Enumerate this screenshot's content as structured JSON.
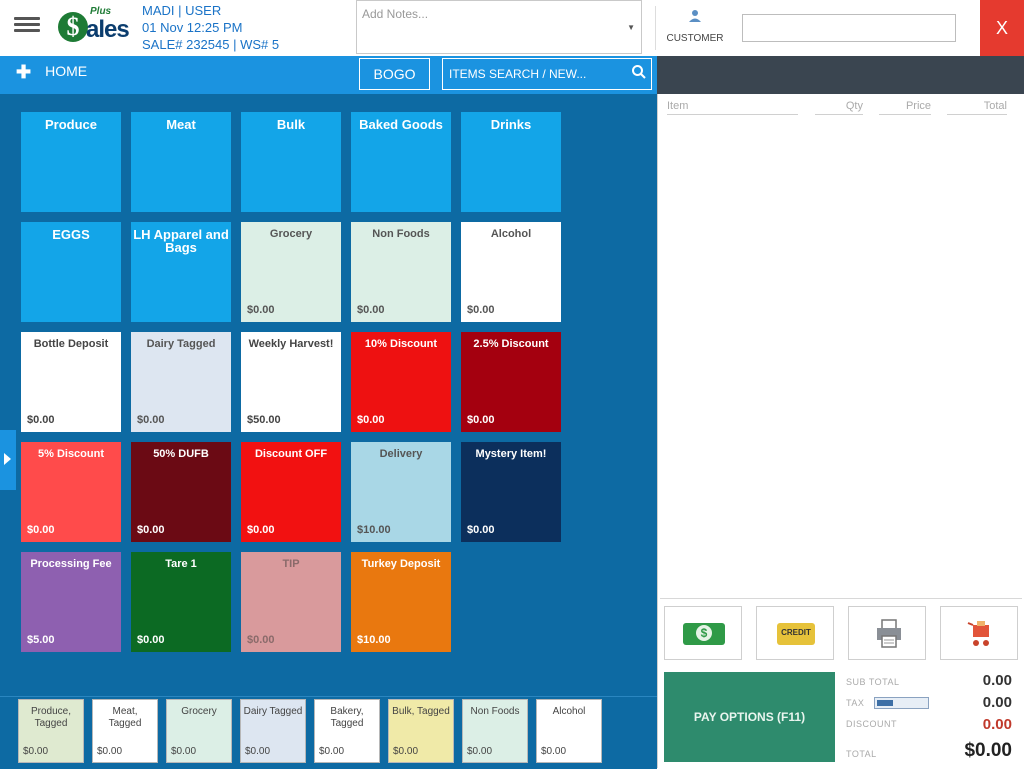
{
  "header": {
    "logo_top": "Plus",
    "logo_coin": "$",
    "logo_word": "ales",
    "user_line": "MADI  |  USER",
    "date_line": "01 Nov 12:25 PM",
    "sale_line": "SALE# 232545  |  WS# 5",
    "notes_placeholder": "Add Notes...",
    "customer_label": "CUSTOMER",
    "close_label": "X"
  },
  "nav": {
    "home_label": "HOME",
    "bogo_label": "BOGO",
    "search_label": "ITEMS SEARCH / NEW..."
  },
  "tiles": [
    {
      "name": "Produce",
      "price": "",
      "bg": "#13a5e8",
      "fg": "#ffffff"
    },
    {
      "name": "Meat",
      "price": "",
      "bg": "#13a5e8",
      "fg": "#ffffff"
    },
    {
      "name": "Bulk",
      "price": "",
      "bg": "#13a5e8",
      "fg": "#ffffff"
    },
    {
      "name": "Baked Goods",
      "price": "",
      "bg": "#13a5e8",
      "fg": "#ffffff"
    },
    {
      "name": "Drinks",
      "price": "",
      "bg": "#13a5e8",
      "fg": "#ffffff"
    },
    {
      "name": "EGGS",
      "price": "",
      "bg": "#13a5e8",
      "fg": "#ffffff"
    },
    {
      "name": "LH Apparel and Bags",
      "price": "",
      "bg": "#13a5e8",
      "fg": "#ffffff"
    },
    {
      "name": "Grocery",
      "price": "$0.00",
      "bg": "#dcefe6",
      "fg": "#555555"
    },
    {
      "name": "Non Foods",
      "price": "$0.00",
      "bg": "#dcefe6",
      "fg": "#555555"
    },
    {
      "name": "Alcohol",
      "price": "$0.00",
      "bg": "#ffffff",
      "fg": "#555555"
    },
    {
      "name": "Bottle Deposit",
      "price": "$0.00",
      "bg": "#ffffff",
      "fg": "#444444"
    },
    {
      "name": "Dairy Tagged",
      "price": "$0.00",
      "bg": "#dde6f1",
      "fg": "#555555"
    },
    {
      "name": "Weekly Harvest!",
      "price": "$50.00",
      "bg": "#ffffff",
      "fg": "#444444"
    },
    {
      "name": "10% Discount",
      "price": "$0.00",
      "bg": "#ee1111",
      "fg": "#ffffff"
    },
    {
      "name": "2.5% Discount",
      "price": "$0.00",
      "bg": "#a4000f",
      "fg": "#ffffff"
    },
    {
      "name": "5% Discount",
      "price": "$0.00",
      "bg": "#ff4b4b",
      "fg": "#ffffff"
    },
    {
      "name": "50% DUFB",
      "price": "$0.00",
      "bg": "#6b0a14",
      "fg": "#ffffff"
    },
    {
      "name": "Discount OFF",
      "price": "$0.00",
      "bg": "#f21111",
      "fg": "#ffffff"
    },
    {
      "name": "Delivery",
      "price": "$10.00",
      "bg": "#a9d7e6",
      "fg": "#555555"
    },
    {
      "name": "Mystery Item!",
      "price": "$0.00",
      "bg": "#0c2f5c",
      "fg": "#ffffff"
    },
    {
      "name": "Processing Fee",
      "price": "$5.00",
      "bg": "#8e60b0",
      "fg": "#ffffff"
    },
    {
      "name": "Tare 1",
      "price": "$0.00",
      "bg": "#0c6a23",
      "fg": "#ffffff"
    },
    {
      "name": "TIP",
      "price": "$0.00",
      "bg": "#d99a9c",
      "fg": "#8a6a6a"
    },
    {
      "name": "Turkey Deposit",
      "price": "$10.00",
      "bg": "#e9780f",
      "fg": "#ffffff"
    }
  ],
  "bottom_tiles": [
    {
      "name": "Produce, Tagged",
      "price": "$0.00",
      "bg": "#dfead0"
    },
    {
      "name": "Meat, Tagged",
      "price": "$0.00",
      "bg": "#ffffff"
    },
    {
      "name": "Grocery",
      "price": "$0.00",
      "bg": "#dcefe6"
    },
    {
      "name": "Dairy Tagged",
      "price": "$0.00",
      "bg": "#dde6f1"
    },
    {
      "name": "Bakery, Tagged",
      "price": "$0.00",
      "bg": "#ffffff"
    },
    {
      "name": "Bulk, Tagged",
      "price": "$0.00",
      "bg": "#f0eaa8"
    },
    {
      "name": "Non Foods",
      "price": "$0.00",
      "bg": "#dcefe6"
    },
    {
      "name": "Alcohol",
      "price": "$0.00",
      "bg": "#ffffff"
    }
  ],
  "cart": {
    "col_item": "Item",
    "col_qty": "Qty",
    "col_price": "Price",
    "col_total": "Total"
  },
  "actions": {
    "cash_label": "$",
    "credit_label": "CREDIT",
    "pay_label": "PAY OPTIONS (F11)"
  },
  "totals": {
    "subtotal_label": "SUB TOTAL",
    "subtotal_value": "0.00",
    "tax_label": "TAX",
    "tax_value": "0.00",
    "discount_label": "DISCOUNT",
    "discount_value": "0.00",
    "total_label": "TOTAL",
    "total_value": "$0.00"
  },
  "colors": {
    "accent_blue": "#1b93e0",
    "main_bg": "#0d6aa3",
    "close_red": "#e53a2f",
    "pay_green": "#2e8b6d",
    "discount_red": "#c0392b"
  }
}
